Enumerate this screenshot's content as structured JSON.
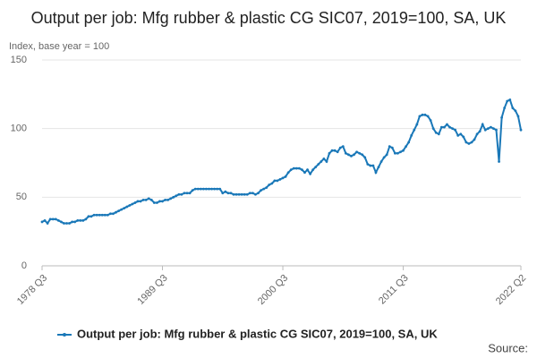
{
  "chart_data": {
    "type": "line",
    "title": "Output per job: Mfg rubber & plastic CG SIC07, 2019=100, SA, UK",
    "y_label": "Index, base year = 100",
    "source": "Source:",
    "categories": [
      "1978 Q3",
      null,
      null,
      null,
      null,
      null,
      null,
      null,
      null,
      null,
      null,
      null,
      null,
      null,
      null,
      null,
      null,
      null,
      null,
      null,
      null,
      null,
      null,
      null,
      null,
      null,
      null,
      null,
      null,
      null,
      null,
      null,
      null,
      null,
      null,
      null,
      null,
      null,
      null,
      null,
      null,
      null,
      null,
      null,
      "1989 Q3",
      null,
      null,
      null,
      null,
      null,
      null,
      null,
      null,
      null,
      null,
      null,
      null,
      null,
      null,
      null,
      null,
      null,
      null,
      null,
      null,
      null,
      null,
      null,
      null,
      null,
      null,
      null,
      null,
      null,
      null,
      null,
      null,
      null,
      null,
      null,
      null,
      null,
      null,
      null,
      null,
      null,
      null,
      null,
      "2000 Q3",
      null,
      null,
      null,
      null,
      null,
      null,
      null,
      null,
      null,
      null,
      null,
      null,
      null,
      null,
      null,
      null,
      null,
      null,
      null,
      null,
      null,
      null,
      null,
      null,
      null,
      null,
      null,
      null,
      null,
      null,
      null,
      null,
      null,
      null,
      null,
      null,
      null,
      null,
      null,
      null,
      null,
      null,
      null,
      "2011 Q3",
      null,
      null,
      null,
      null,
      null,
      null,
      null,
      null,
      null,
      null,
      null,
      null,
      null,
      null,
      null,
      null,
      null,
      null,
      null,
      null,
      null,
      null,
      null,
      null,
      null,
      null,
      null,
      null,
      null,
      null,
      null,
      null,
      null,
      null,
      null,
      null,
      null,
      null,
      null,
      null,
      null,
      null,
      "2022 Q2"
    ],
    "series": [
      {
        "name": "Output per job: Mfg rubber & plastic CG SIC07, 2019=100, SA, UK",
        "color": "#1a78b8",
        "values": [
          32,
          33,
          31,
          34,
          34,
          34,
          33,
          32,
          31,
          31,
          31,
          32,
          32,
          33,
          33,
          33,
          34,
          36,
          36,
          37,
          37,
          37,
          37,
          37,
          37,
          38,
          38,
          39,
          40,
          41,
          42,
          43,
          44,
          45,
          46,
          47,
          47,
          48,
          48,
          49,
          48,
          46,
          46,
          47,
          47,
          48,
          48,
          49,
          50,
          51,
          52,
          52,
          53,
          53,
          53,
          55,
          56,
          56,
          56,
          56,
          56,
          56,
          56,
          56,
          56,
          56,
          53,
          54,
          53,
          53,
          52,
          52,
          52,
          52,
          52,
          52,
          53,
          53,
          52,
          53,
          55,
          56,
          57,
          59,
          60,
          62,
          62,
          63,
          64,
          65,
          68,
          70,
          71,
          71,
          71,
          70,
          68,
          70,
          67,
          70,
          72,
          74,
          76,
          78,
          76,
          82,
          84,
          84,
          83,
          86,
          87,
          82,
          81,
          80,
          81,
          83,
          82,
          81,
          79,
          74,
          73,
          73,
          68,
          72,
          76,
          79,
          81,
          87,
          86,
          82,
          82,
          83,
          84,
          87,
          90,
          95,
          99,
          103,
          109,
          110,
          110,
          109,
          106,
          100,
          97,
          96,
          101,
          101,
          103,
          101,
          100,
          99,
          95,
          96,
          94,
          90,
          89,
          90,
          92,
          96,
          98,
          103,
          99,
          100,
          101,
          100,
          99,
          76,
          108,
          115,
          120,
          121,
          115,
          113,
          109,
          99
        ]
      }
    ],
    "ylim": [
      0,
      150
    ],
    "yticks": [
      0,
      50,
      100,
      150
    ],
    "grid": true,
    "legend": "bottom"
  }
}
